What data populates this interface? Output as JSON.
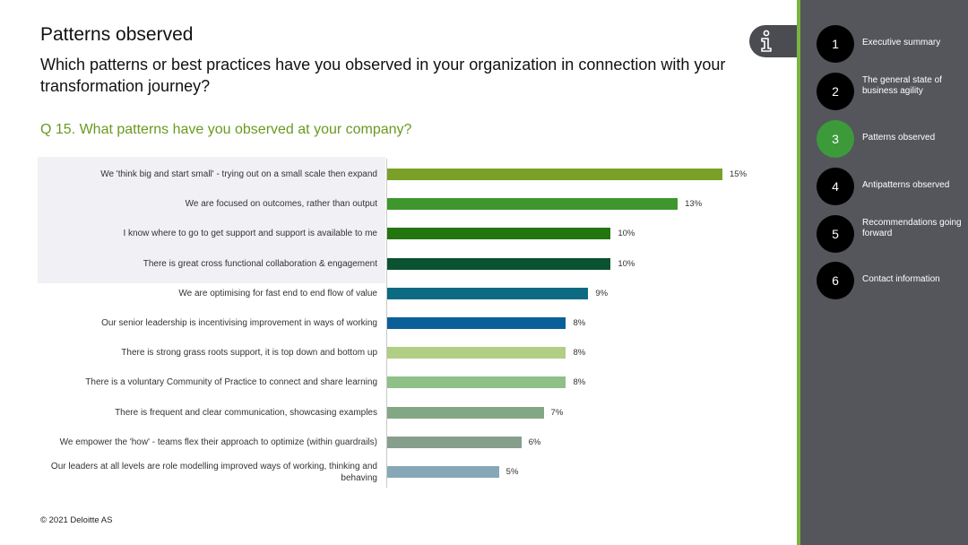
{
  "header": {
    "title": "Patterns observed",
    "subtitle": "Which patterns or best practices have you observed in your organization in connection with your transformation journey?",
    "question": "Q 15. What patterns have you observed at your company?"
  },
  "footer": {
    "copyright": "© 2021 Deloitte AS"
  },
  "info_icon": "info-icon",
  "sidebar": {
    "accent_color": "#7ab440",
    "active_color": "#3c9a3a",
    "items": [
      {
        "number": "1",
        "label": "Executive summary",
        "active": false
      },
      {
        "number": "2",
        "label": "The general state of business agility",
        "active": false
      },
      {
        "number": "3",
        "label": "Patterns observed",
        "active": true
      },
      {
        "number": "4",
        "label": "Antipatterns observed",
        "active": false
      },
      {
        "number": "5",
        "label": "Recommendations going forward",
        "active": false
      },
      {
        "number": "6",
        "label": "Contact information",
        "active": false
      }
    ]
  },
  "chart_data": {
    "type": "bar",
    "orientation": "horizontal",
    "categories": [
      "We 'think big and start small' - trying out on a small scale then expand",
      "We are focused on outcomes, rather than output",
      "I know where to go to get support and support is available to me",
      "There is great cross functional collaboration & engagement",
      "We are optimising for fast end to end flow of value",
      "Our senior leadership is incentivising improvement in ways of working",
      "There is strong grass roots support, it is top down and bottom up",
      "There is a voluntary Community of Practice to connect and share learning",
      "There is frequent and clear communication, showcasing examples",
      "We empower the 'how' - teams flex their approach to optimize (within guardrails)",
      "Our leaders at all levels are role modelling improved ways of working, thinking and behaving"
    ],
    "values": [
      15,
      13,
      10,
      10,
      9,
      8,
      8,
      8,
      7,
      6,
      5
    ],
    "value_labels": [
      "15%",
      "13%",
      "10%",
      "10%",
      "9%",
      "8%",
      "8%",
      "8%",
      "7%",
      "6%",
      "5%"
    ],
    "bar_colors": [
      "#7aa127",
      "#3e962d",
      "#22750f",
      "#0a5230",
      "#0c6a82",
      "#0b5f98",
      "#b0ce84",
      "#8ec087",
      "#83a684",
      "#869f8d",
      "#86a8b6"
    ],
    "highlighted_top": 4,
    "xlim": [
      0,
      15
    ]
  }
}
